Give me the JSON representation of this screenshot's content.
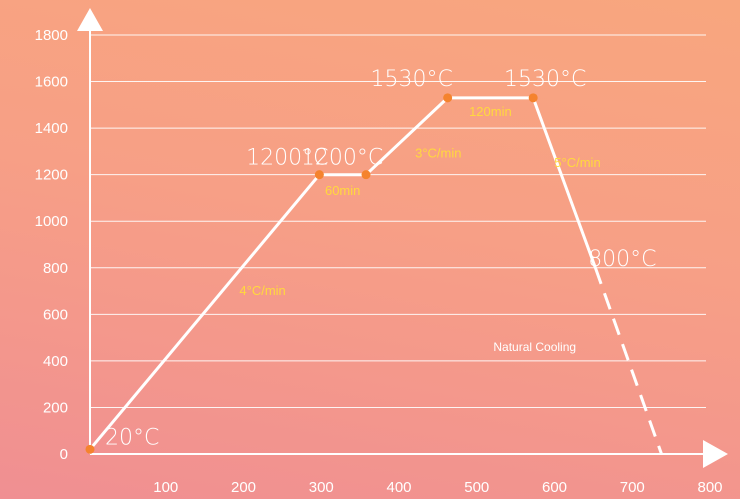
{
  "chart_data": {
    "type": "line",
    "xlabel": "",
    "ylabel": "",
    "xlim": [
      0,
      800
    ],
    "ylim": [
      0,
      1800
    ],
    "x_ticks": [
      100,
      200,
      300,
      400,
      500,
      600,
      700,
      800
    ],
    "y_ticks": [
      0,
      200,
      400,
      600,
      800,
      1000,
      1200,
      1400,
      1600,
      1800
    ],
    "grid": "horizontal",
    "series": [
      {
        "style": "solid",
        "points": [
          [
            0,
            20
          ],
          [
            295,
            1200
          ],
          [
            355,
            1200
          ],
          [
            460,
            1530
          ],
          [
            570,
            1530
          ],
          [
            650,
            800
          ]
        ]
      },
      {
        "style": "dashed",
        "points": [
          [
            650,
            800
          ],
          [
            735,
            0
          ]
        ]
      }
    ],
    "markers": [
      [
        0,
        20
      ],
      [
        295,
        1200
      ],
      [
        355,
        1200
      ],
      [
        460,
        1530
      ],
      [
        570,
        1530
      ]
    ],
    "point_labels": [
      {
        "text": "20°C",
        "x": 0,
        "y": 20
      },
      {
        "text": "1200°C",
        "x": 295,
        "y": 1200
      },
      {
        "text": "1200°C",
        "x": 355,
        "y": 1200
      },
      {
        "text": "1530°C",
        "x": 460,
        "y": 1530
      },
      {
        "text": "1530°C",
        "x": 570,
        "y": 1530
      },
      {
        "text": "800°C",
        "x": 650,
        "y": 800
      }
    ],
    "segment_labels": [
      {
        "text": "4°C/min",
        "x": 222,
        "y": 700
      },
      {
        "text": "60min",
        "x": 325,
        "y": 1130
      },
      {
        "text": "3°C/min",
        "x": 448,
        "y": 1290
      },
      {
        "text": "120min",
        "x": 515,
        "y": 1470
      },
      {
        "text": "5°C/min",
        "x": 627,
        "y": 1250
      }
    ],
    "annotations": [
      {
        "text": "Natural Cooling",
        "x": 572,
        "y": 460
      }
    ],
    "colors": {
      "line": "#ffffff",
      "marker": "#f5832e",
      "rate_text": "#ffd93d",
      "background_top": "#f8a67e",
      "background_bottom": "#f08f92"
    }
  }
}
